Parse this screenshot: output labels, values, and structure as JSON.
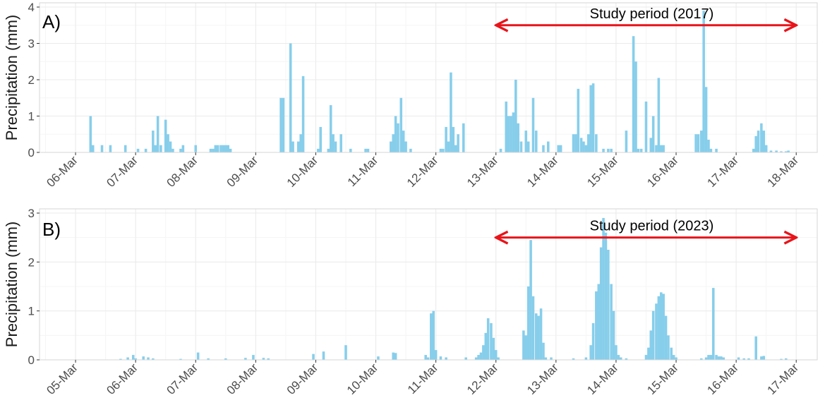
{
  "colors": {
    "bar": "#87CEEB",
    "arrow": "#E8141A",
    "grid_major": "#EBEBEB",
    "grid_minor": "#F5F5F5",
    "panel_border": "#D6D6D6",
    "text": "#1A1A1A"
  },
  "chart_data": [
    {
      "type": "bar",
      "panel_label": "A)",
      "ylabel": "Precipitation (mm)",
      "ylim": [
        0,
        4
      ],
      "yticks": [
        "0",
        "1",
        "2",
        "3",
        "4"
      ],
      "x_tick_labels": [
        "06-Mar",
        "07-Mar",
        "08-Mar",
        "09-Mar",
        "10-Mar",
        "11-Mar",
        "12-Mar",
        "13-Mar",
        "14-Mar",
        "15-Mar",
        "16-Mar",
        "17-Mar",
        "18-Mar"
      ],
      "x_range_days": [
        -0.6,
        12.35
      ],
      "grid": true,
      "annotation": {
        "text": "Study period (2017)",
        "arrow_from_day": 7.0,
        "arrow_to_day": 12.0,
        "arrow_y": 3.5
      },
      "series": [
        {
          "values": [
            [
              0.25,
              1.0
            ],
            [
              0.29,
              0.2
            ],
            [
              0.44,
              0.2
            ],
            [
              0.58,
              0.2
            ],
            [
              0.83,
              0.2
            ],
            [
              1.04,
              0.1
            ],
            [
              1.17,
              0.1
            ],
            [
              1.29,
              0.6
            ],
            [
              1.33,
              0.2
            ],
            [
              1.37,
              1.0
            ],
            [
              1.42,
              0.2
            ],
            [
              1.5,
              0.9
            ],
            [
              1.54,
              0.5
            ],
            [
              1.58,
              0.3
            ],
            [
              1.62,
              0.1
            ],
            [
              1.75,
              0.1
            ],
            [
              1.79,
              0.2
            ],
            [
              2.0,
              0.2
            ],
            [
              2.25,
              0.1
            ],
            [
              2.29,
              0.1
            ],
            [
              2.33,
              0.2
            ],
            [
              2.37,
              0.2
            ],
            [
              2.42,
              0.2
            ],
            [
              2.46,
              0.2
            ],
            [
              2.5,
              0.2
            ],
            [
              2.54,
              0.2
            ],
            [
              2.58,
              0.1
            ],
            [
              3.42,
              1.5
            ],
            [
              3.46,
              1.5
            ],
            [
              3.58,
              3.0
            ],
            [
              3.62,
              0.3
            ],
            [
              3.71,
              0.3
            ],
            [
              3.75,
              0.5
            ],
            [
              3.79,
              2.1
            ],
            [
              4.04,
              0.1
            ],
            [
              4.08,
              0.7
            ],
            [
              4.21,
              0.1
            ],
            [
              4.25,
              1.3
            ],
            [
              4.29,
              0.5
            ],
            [
              4.33,
              0.3
            ],
            [
              4.42,
              0.5
            ],
            [
              4.58,
              0.1
            ],
            [
              4.83,
              0.1
            ],
            [
              4.87,
              0.1
            ],
            [
              5.25,
              0.3
            ],
            [
              5.29,
              0.5
            ],
            [
              5.33,
              1.0
            ],
            [
              5.37,
              0.8
            ],
            [
              5.42,
              1.5
            ],
            [
              5.46,
              0.6
            ],
            [
              5.5,
              0.3
            ],
            [
              5.58,
              0.1
            ],
            [
              6.08,
              0.1
            ],
            [
              6.12,
              0.1
            ],
            [
              6.17,
              0.7
            ],
            [
              6.21,
              0.3
            ],
            [
              6.25,
              2.2
            ],
            [
              6.29,
              0.7
            ],
            [
              6.33,
              0.2
            ],
            [
              6.37,
              0.5
            ],
            [
              6.46,
              0.8
            ],
            [
              7.08,
              0.1
            ],
            [
              7.17,
              1.4
            ],
            [
              7.21,
              1.0
            ],
            [
              7.25,
              1.0
            ],
            [
              7.29,
              1.1
            ],
            [
              7.33,
              2.0
            ],
            [
              7.37,
              0.8
            ],
            [
              7.42,
              0.3
            ],
            [
              7.5,
              0.6
            ],
            [
              7.54,
              0.3
            ],
            [
              7.62,
              1.5
            ],
            [
              7.67,
              0.6
            ],
            [
              7.79,
              0.2
            ],
            [
              7.87,
              0.3
            ],
            [
              8.04,
              0.2
            ],
            [
              8.08,
              0.2
            ],
            [
              8.29,
              0.5
            ],
            [
              8.33,
              0.5
            ],
            [
              8.37,
              1.75
            ],
            [
              8.42,
              0.4
            ],
            [
              8.46,
              0.3
            ],
            [
              8.5,
              0.2
            ],
            [
              8.54,
              0.5
            ],
            [
              8.58,
              1.85
            ],
            [
              8.62,
              1.9
            ],
            [
              8.67,
              0.5
            ],
            [
              8.79,
              0.1
            ],
            [
              8.87,
              0.1
            ],
            [
              8.92,
              0.1
            ],
            [
              9.17,
              0.6
            ],
            [
              9.29,
              3.2
            ],
            [
              9.33,
              2.5
            ],
            [
              9.37,
              0.1
            ],
            [
              9.42,
              0.1
            ],
            [
              9.5,
              1.4
            ],
            [
              9.58,
              0.4
            ],
            [
              9.62,
              1.0
            ],
            [
              9.67,
              0.2
            ],
            [
              9.71,
              2.05
            ],
            [
              9.75,
              0.2
            ],
            [
              9.79,
              0.2
            ],
            [
              10.33,
              0.5
            ],
            [
              10.37,
              0.5
            ],
            [
              10.42,
              0.6
            ],
            [
              10.46,
              3.9
            ],
            [
              10.5,
              1.8
            ],
            [
              10.54,
              0.35
            ],
            [
              10.58,
              0.1
            ],
            [
              10.67,
              0.1
            ],
            [
              11.29,
              0.1
            ],
            [
              11.33,
              0.45
            ],
            [
              11.37,
              0.6
            ],
            [
              11.42,
              0.8
            ],
            [
              11.46,
              0.6
            ],
            [
              11.5,
              0.2
            ],
            [
              11.58,
              0.05
            ],
            [
              11.67,
              0.05
            ],
            [
              11.75,
              0.03
            ],
            [
              11.83,
              0.03
            ],
            [
              11.87,
              0.05
            ]
          ]
        }
      ]
    },
    {
      "type": "bar",
      "panel_label": "B)",
      "ylabel": "Precipitation (mm)",
      "ylim": [
        0,
        3
      ],
      "yticks": [
        "0",
        "1",
        "2",
        "3"
      ],
      "x_tick_labels": [
        "05-Mar",
        "06-Mar",
        "07-Mar",
        "08-Mar",
        "09-Mar",
        "10-Mar",
        "11-Mar",
        "12-Mar",
        "13-Mar",
        "14-Mar",
        "15-Mar",
        "16-Mar",
        "17-Mar"
      ],
      "x_range_days": [
        -0.6,
        12.35
      ],
      "grid": true,
      "annotation": {
        "text": "Study period (2023)",
        "arrow_from_day": 7.0,
        "arrow_to_day": 12.0,
        "arrow_y": 2.5
      },
      "series": [
        {
          "values": [
            [
              0.75,
              0.02
            ],
            [
              0.87,
              0.05
            ],
            [
              0.96,
              0.1
            ],
            [
              1.0,
              0.03
            ],
            [
              1.13,
              0.07
            ],
            [
              1.21,
              0.05
            ],
            [
              1.29,
              0.03
            ],
            [
              1.75,
              0.02
            ],
            [
              2.04,
              0.15
            ],
            [
              2.21,
              0.03
            ],
            [
              2.5,
              0.03
            ],
            [
              2.83,
              0.04
            ],
            [
              2.96,
              0.1
            ],
            [
              3.13,
              0.04
            ],
            [
              3.21,
              0.03
            ],
            [
              3.96,
              0.12
            ],
            [
              4.13,
              0.17
            ],
            [
              4.5,
              0.3
            ],
            [
              5.04,
              0.07
            ],
            [
              5.29,
              0.15
            ],
            [
              5.33,
              0.14
            ],
            [
              5.83,
              0.1
            ],
            [
              5.87,
              0.05
            ],
            [
              5.92,
              0.95
            ],
            [
              5.96,
              1.0
            ],
            [
              6.0,
              0.2
            ],
            [
              6.08,
              0.07
            ],
            [
              6.17,
              0.05
            ],
            [
              6.5,
              0.05
            ],
            [
              6.67,
              0.05
            ],
            [
              6.71,
              0.1
            ],
            [
              6.75,
              0.15
            ],
            [
              6.79,
              0.3
            ],
            [
              6.83,
              0.55
            ],
            [
              6.87,
              0.85
            ],
            [
              6.92,
              0.75
            ],
            [
              6.96,
              0.45
            ],
            [
              7.0,
              0.2
            ],
            [
              7.04,
              0.05
            ],
            [
              7.46,
              0.6
            ],
            [
              7.5,
              0.5
            ],
            [
              7.54,
              1.5
            ],
            [
              7.58,
              2.45
            ],
            [
              7.62,
              1.3
            ],
            [
              7.67,
              0.95
            ],
            [
              7.71,
              0.9
            ],
            [
              7.75,
              1.05
            ],
            [
              7.79,
              0.35
            ],
            [
              7.83,
              0.05
            ],
            [
              7.92,
              0.05
            ],
            [
              8.29,
              0.03
            ],
            [
              8.5,
              0.05
            ],
            [
              8.58,
              0.3
            ],
            [
              8.62,
              0.75
            ],
            [
              8.67,
              1.4
            ],
            [
              8.71,
              1.55
            ],
            [
              8.75,
              2.3
            ],
            [
              8.79,
              2.9
            ],
            [
              8.83,
              2.6
            ],
            [
              8.87,
              2.25
            ],
            [
              8.92,
              1.55
            ],
            [
              8.96,
              1.0
            ],
            [
              9.0,
              0.3
            ],
            [
              9.04,
              0.1
            ],
            [
              9.08,
              0.05
            ],
            [
              9.17,
              0.03
            ],
            [
              9.5,
              0.1
            ],
            [
              9.54,
              0.25
            ],
            [
              9.58,
              0.6
            ],
            [
              9.62,
              1.0
            ],
            [
              9.67,
              1.15
            ],
            [
              9.71,
              1.3
            ],
            [
              9.75,
              1.38
            ],
            [
              9.79,
              1.35
            ],
            [
              9.83,
              0.9
            ],
            [
              9.87,
              0.5
            ],
            [
              9.92,
              0.25
            ],
            [
              9.96,
              0.1
            ],
            [
              10.0,
              0.05
            ],
            [
              10.42,
              0.03
            ],
            [
              10.5,
              0.05
            ],
            [
              10.54,
              0.1
            ],
            [
              10.58,
              0.1
            ],
            [
              10.62,
              1.47
            ],
            [
              10.67,
              0.1
            ],
            [
              10.71,
              0.07
            ],
            [
              10.75,
              0.07
            ],
            [
              10.79,
              0.05
            ],
            [
              11.04,
              0.05
            ],
            [
              11.13,
              0.03
            ],
            [
              11.21,
              0.03
            ],
            [
              11.33,
              0.48
            ],
            [
              11.42,
              0.07
            ],
            [
              11.46,
              0.08
            ],
            [
              11.75,
              0.02
            ],
            [
              11.83,
              0.03
            ]
          ]
        }
      ]
    }
  ]
}
